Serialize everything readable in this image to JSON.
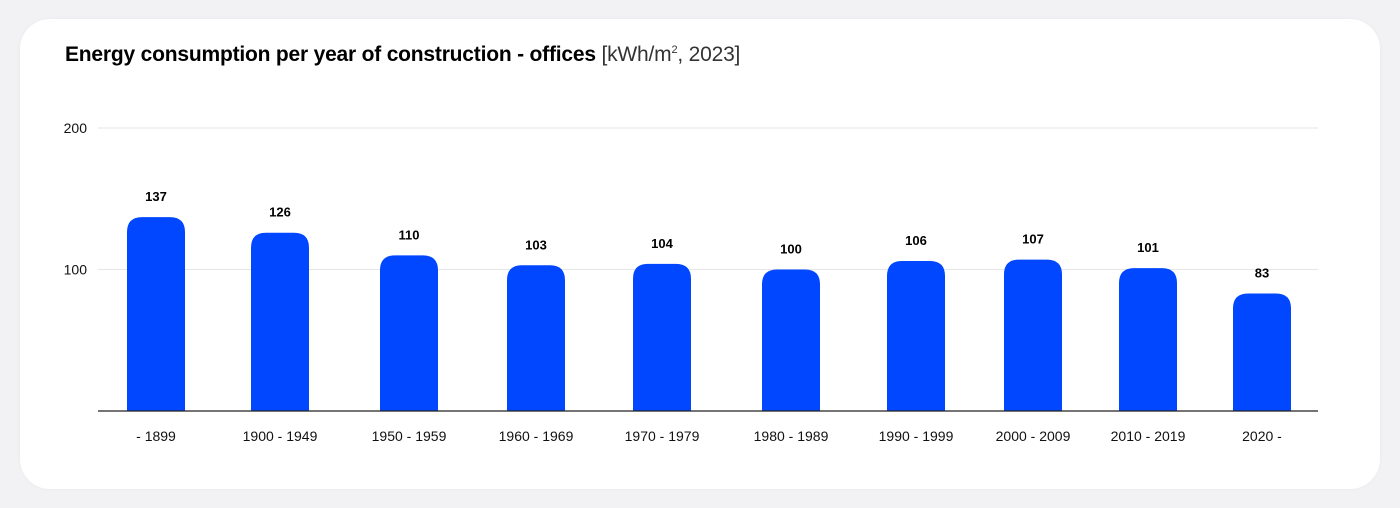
{
  "chart_data": {
    "type": "bar",
    "title": "Energy consumption per year of construction - offices",
    "unit_prefix": "[kWh/m",
    "unit_sup": "2",
    "unit_suffix": ", 2023]",
    "categories": [
      "- 1899",
      "1900 - 1949",
      "1950 - 1959",
      "1960 - 1969",
      "1970 - 1979",
      "1980 - 1989",
      "1990 - 1999",
      "2000 - 2009",
      "2010 - 2019",
      "2020 -"
    ],
    "values": [
      137,
      126,
      110,
      103,
      104,
      100,
      106,
      107,
      101,
      83
    ],
    "value_labels": [
      "137",
      "126",
      "110",
      "103",
      "104",
      "100",
      "106",
      "107",
      "101",
      "83"
    ],
    "ylim": [
      0,
      200
    ],
    "yticks": [
      100,
      200
    ],
    "ytick_labels": [
      "100",
      "200"
    ],
    "grid": true,
    "bar_color": "#0047ff",
    "grid_color": "#e6e6e6",
    "axis_color": "#222222"
  }
}
